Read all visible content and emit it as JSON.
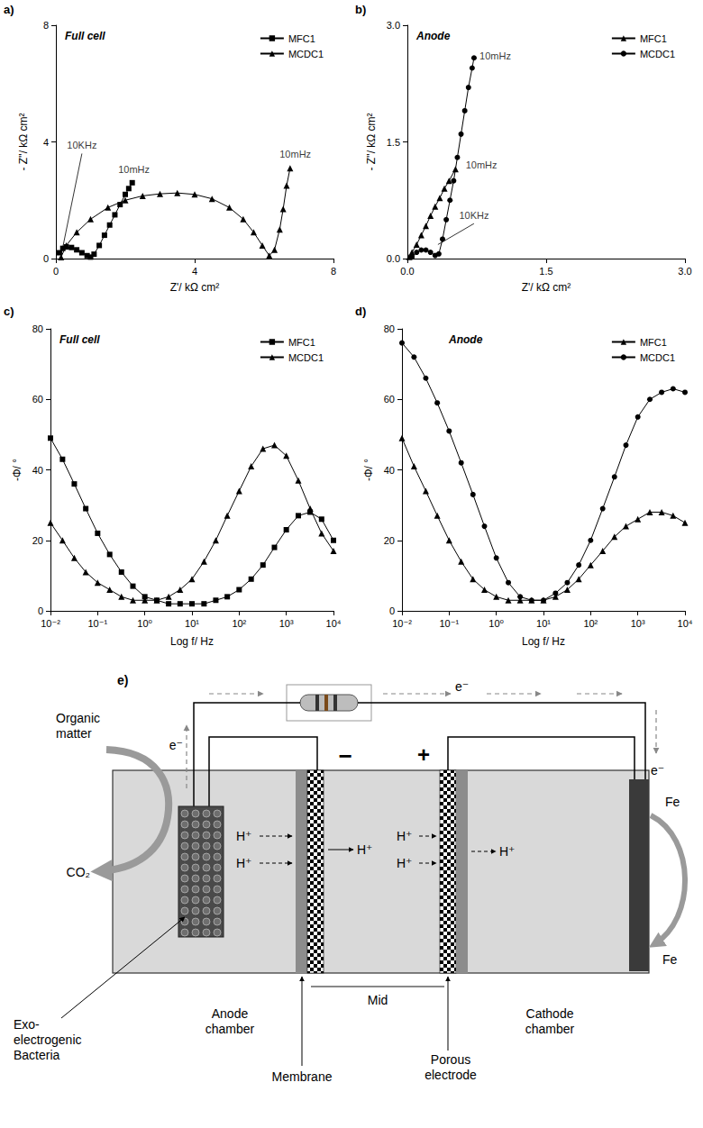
{
  "chart_data": [
    {
      "type": "line",
      "label": "a)",
      "title": "Full cell",
      "x_label": "Z'/ kΩ cm²",
      "y_label": "- Z''/ kΩ cm²",
      "xlim": [
        0,
        8
      ],
      "xticks": [
        0,
        4,
        8
      ],
      "ylim": [
        0,
        8
      ],
      "yticks": [
        0,
        4,
        8
      ],
      "grid": false,
      "legend": "top-right",
      "series": [
        {
          "name": "MFC1",
          "color": "#000000",
          "marker": "square",
          "line_style": "solid",
          "x": [
            0.1,
            0.2,
            0.3,
            0.45,
            0.6,
            0.75,
            0.9,
            1.0,
            1.1,
            1.25,
            1.4,
            1.55,
            1.7,
            1.85,
            2.0,
            2.1,
            2.2
          ],
          "values": [
            0.2,
            0.35,
            0.4,
            0.38,
            0.3,
            0.2,
            0.1,
            0.05,
            0.15,
            0.45,
            0.8,
            1.15,
            1.5,
            1.85,
            2.2,
            2.4,
            2.6
          ]
        },
        {
          "name": "MCDC1",
          "color": "#000000",
          "marker": "triangle",
          "line_style": "solid",
          "x": [
            0.15,
            0.3,
            0.6,
            1.0,
            1.5,
            2.0,
            2.5,
            3.0,
            3.5,
            4.0,
            4.5,
            5.0,
            5.4,
            5.7,
            5.95,
            6.15,
            6.3,
            6.45,
            6.55,
            6.65,
            6.75
          ],
          "values": [
            0.05,
            0.45,
            0.9,
            1.35,
            1.75,
            2.0,
            2.15,
            2.22,
            2.25,
            2.2,
            2.05,
            1.75,
            1.35,
            0.9,
            0.45,
            0.1,
            0.3,
            1.0,
            1.7,
            2.5,
            3.1
          ]
        }
      ],
      "annotations": [
        {
          "text": "10KHz",
          "x": 0.75,
          "y": 3.6,
          "target": [
            0.15,
            0.1
          ]
        },
        {
          "text": "10mHz",
          "x": 2.25,
          "y": 2.75
        },
        {
          "text": "10mHz",
          "x": 6.9,
          "y": 3.3
        }
      ]
    },
    {
      "type": "line",
      "label": "b)",
      "title": "Anode",
      "x_label": "Z'/ kΩ cm²",
      "y_label": "- Z''/ kΩ cm²",
      "xlim": [
        0,
        3
      ],
      "xticks": [
        {
          "value": 0,
          "label": "0.0"
        },
        1.5,
        {
          "value": 3,
          "label": "3.0"
        }
      ],
      "ylim": [
        0,
        3
      ],
      "yticks": [
        {
          "value": 0,
          "label": "0.0"
        },
        1.5,
        {
          "value": 3,
          "label": "3.0"
        }
      ],
      "grid": false,
      "legend": "top-right",
      "series": [
        {
          "name": "MFC1",
          "color": "#000000",
          "marker": "triangle",
          "line_style": "solid",
          "x": [
            0.02,
            0.05,
            0.1,
            0.15,
            0.2,
            0.25,
            0.3,
            0.35,
            0.4,
            0.45,
            0.52
          ],
          "values": [
            0.02,
            0.08,
            0.18,
            0.3,
            0.42,
            0.55,
            0.67,
            0.78,
            0.9,
            1.0,
            1.15
          ]
        },
        {
          "name": "MCDC1",
          "color": "#000000",
          "marker": "circle",
          "line_style": "solid",
          "x": [
            0.05,
            0.1,
            0.15,
            0.2,
            0.25,
            0.3,
            0.34,
            0.38,
            0.42,
            0.46,
            0.5,
            0.54,
            0.58,
            0.62,
            0.66,
            0.7,
            0.72
          ],
          "values": [
            0.02,
            0.08,
            0.11,
            0.11,
            0.08,
            0.04,
            0.06,
            0.25,
            0.5,
            0.75,
            1.0,
            1.3,
            1.6,
            1.9,
            2.2,
            2.45,
            2.58
          ]
        }
      ],
      "annotations": [
        {
          "text": "10mHz",
          "x": 0.95,
          "y": 2.5
        },
        {
          "text": "10mHz",
          "x": 0.8,
          "y": 1.1
        },
        {
          "text": "10KHz",
          "x": 0.72,
          "y": 0.45,
          "target": [
            0.33,
            0.18
          ]
        }
      ]
    },
    {
      "type": "line",
      "label": "c)",
      "title": "Full cell",
      "x_label": "Log f/ Hz",
      "y_label": "-Φ/ °",
      "log": "x",
      "xlim": [
        0.01,
        10000
      ],
      "xticks": [
        {
          "value": 0.01,
          "label": "10⁻²"
        },
        {
          "value": 0.1,
          "label": "10⁻¹"
        },
        {
          "value": 1,
          "label": "10⁰"
        },
        {
          "value": 10,
          "label": "10¹"
        },
        {
          "value": 100,
          "label": "10²"
        },
        {
          "value": 1000,
          "label": "10³"
        },
        {
          "value": 10000,
          "label": "10⁴"
        }
      ],
      "ylim": [
        0,
        80
      ],
      "yticks": [
        0,
        20,
        40,
        60,
        80
      ],
      "grid": false,
      "legend": "top-right",
      "x": [
        0.01,
        0.018,
        0.032,
        0.056,
        0.1,
        0.18,
        0.32,
        0.56,
        1,
        1.8,
        3.2,
        5.6,
        10,
        18,
        32,
        56,
        100,
        180,
        320,
        560,
        1000,
        1800,
        3200,
        5600,
        10000
      ],
      "series": [
        {
          "name": "MFC1",
          "color": "#000000",
          "marker": "square",
          "line_style": "solid",
          "values": [
            49,
            43,
            36,
            29,
            22,
            16,
            11,
            7,
            4,
            3,
            2,
            2,
            2,
            2,
            3,
            4,
            6,
            9,
            13,
            18,
            23,
            27,
            28,
            26,
            20
          ]
        },
        {
          "name": "MCDC1",
          "color": "#000000",
          "marker": "triangle",
          "line_style": "solid",
          "values": [
            25,
            20,
            15,
            11,
            8,
            6,
            4,
            3,
            3,
            3,
            4,
            6,
            9,
            14,
            20,
            27,
            34,
            41,
            46,
            47,
            44,
            37,
            29,
            22,
            17
          ]
        }
      ]
    },
    {
      "type": "line",
      "label": "d)",
      "title": "Anode",
      "x_label": "Log f/ Hz",
      "y_label": "-Φ/ °",
      "log": "x",
      "xlim": [
        0.01,
        10000
      ],
      "xticks": [
        {
          "value": 0.01,
          "label": "10⁻²"
        },
        {
          "value": 0.1,
          "label": "10⁻¹"
        },
        {
          "value": 1,
          "label": "10⁰"
        },
        {
          "value": 10,
          "label": "10¹"
        },
        {
          "value": 100,
          "label": "10²"
        },
        {
          "value": 1000,
          "label": "10³"
        },
        {
          "value": 10000,
          "label": "10⁴"
        }
      ],
      "ylim": [
        0,
        80
      ],
      "yticks": [
        0,
        20,
        40,
        60,
        80
      ],
      "grid": false,
      "legend": "top-right",
      "x": [
        0.01,
        0.018,
        0.032,
        0.056,
        0.1,
        0.18,
        0.32,
        0.56,
        1,
        1.8,
        3.2,
        5.6,
        10,
        18,
        32,
        56,
        100,
        180,
        320,
        560,
        1000,
        1800,
        3200,
        5600,
        10000
      ],
      "series": [
        {
          "name": "MFC1",
          "color": "#000000",
          "marker": "triangle",
          "line_style": "solid",
          "values": [
            49,
            41,
            34,
            27,
            20,
            14,
            9,
            6,
            4,
            3,
            3,
            3,
            3,
            4,
            6,
            9,
            13,
            17,
            21,
            24,
            26,
            28,
            28,
            27,
            25
          ]
        },
        {
          "name": "MCDC1",
          "color": "#000000",
          "marker": "circle",
          "line_style": "solid",
          "values": [
            76,
            72,
            66,
            59,
            51,
            42,
            33,
            24,
            15,
            8,
            4,
            3,
            3,
            5,
            8,
            13,
            20,
            29,
            38,
            47,
            55,
            60,
            62,
            63,
            62
          ]
        }
      ]
    }
  ],
  "diagram": {
    "label": "e)",
    "organic_matter": "Organic matter",
    "co2": "CO₂",
    "bacteria": "Exo-electrogenic Bacteria",
    "anode_chamber": "Anode chamber",
    "membrane": "Membrane",
    "mid": "Mid",
    "porous_electrode": "Porous electrode",
    "cathode_chamber": "Cathode chamber",
    "negative_pole": "−",
    "positive_pole": "+",
    "proton": "H⁺",
    "electron": "e⁻",
    "iron_top": "Fe",
    "iron_bottom": "Fe"
  }
}
